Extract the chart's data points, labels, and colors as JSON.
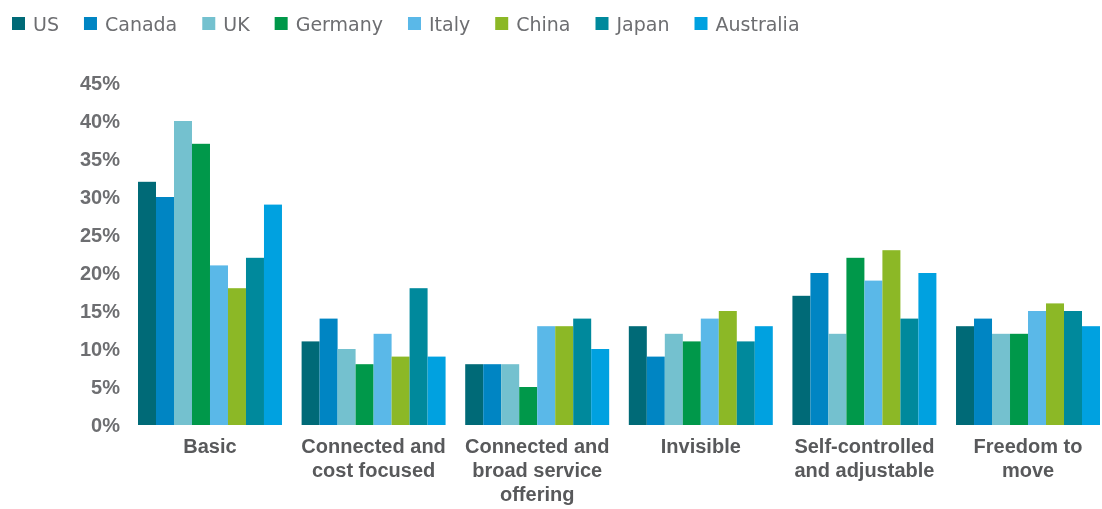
{
  "chart_data": {
    "type": "bar",
    "categories": [
      "Basic",
      "Connected and cost focused",
      "Connected and broad service offering",
      "Invisible",
      "Self-controlled and adjustable",
      "Freedom to move"
    ],
    "series": [
      {
        "name": "US",
        "color": "#006a77",
        "values": [
          32,
          11,
          8,
          13,
          17,
          13
        ]
      },
      {
        "name": "Canada",
        "color": "#0085c3",
        "values": [
          30,
          14,
          8,
          9,
          20,
          14
        ]
      },
      {
        "name": "UK",
        "color": "#74c1cf",
        "values": [
          40,
          10,
          8,
          12,
          12,
          12
        ]
      },
      {
        "name": "Germany",
        "color": "#00984a",
        "values": [
          37,
          8,
          5,
          11,
          22,
          12
        ]
      },
      {
        "name": "Italy",
        "color": "#5ab8e8",
        "values": [
          21,
          12,
          13,
          14,
          19,
          15
        ]
      },
      {
        "name": "China",
        "color": "#8cb826",
        "values": [
          18,
          9,
          13,
          15,
          23,
          16
        ]
      },
      {
        "name": "Japan",
        "color": "#00899c",
        "values": [
          22,
          18,
          14,
          11,
          14,
          15
        ]
      },
      {
        "name": "Australia",
        "color": "#00a1e0",
        "values": [
          29,
          9,
          10,
          13,
          20,
          13
        ]
      }
    ],
    "ylim": [
      0,
      45
    ],
    "yticks": [
      {
        "value": 0,
        "label": "0%"
      },
      {
        "value": 5,
        "label": "5%"
      },
      {
        "value": 10,
        "label": "10%"
      },
      {
        "value": 15,
        "label": "15%"
      },
      {
        "value": 20,
        "label": "20%"
      },
      {
        "value": 25,
        "label": "25%"
      },
      {
        "value": 30,
        "label": "30%"
      },
      {
        "value": 35,
        "label": "35%"
      },
      {
        "value": 40,
        "label": "40%"
      },
      {
        "value": 45,
        "label": "45%"
      }
    ],
    "grid": false,
    "legend": "top left"
  }
}
